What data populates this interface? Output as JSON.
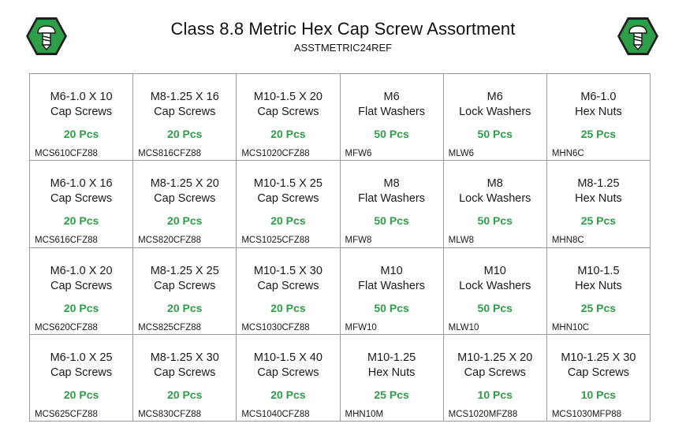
{
  "header": {
    "title": "Class 8.8 Metric Hex Cap Screw Assortment",
    "subtitle": "ASSTMETRIC24REF",
    "logo_icon": "green-hex-screw-icon",
    "logo_color": "#2e9e48"
  },
  "qty_color": "#2e9e48",
  "rows": [
    [
      {
        "size": "M6-1.0 X 10",
        "kind": "Cap Screws",
        "qty": "20 Pcs",
        "sku": "MCS610CFZ88"
      },
      {
        "size": "M8-1.25 X 16",
        "kind": "Cap Screws",
        "qty": "20 Pcs",
        "sku": "MCS816CFZ88"
      },
      {
        "size": "M10-1.5 X 20",
        "kind": "Cap Screws",
        "qty": "20 Pcs",
        "sku": "MCS1020CFZ88"
      },
      {
        "size": "M6",
        "kind": "Flat Washers",
        "qty": "50 Pcs",
        "sku": "MFW6"
      },
      {
        "size": "M6",
        "kind": "Lock Washers",
        "qty": "50 Pcs",
        "sku": "MLW6"
      },
      {
        "size": "M6-1.0",
        "kind": "Hex Nuts",
        "qty": "25 Pcs",
        "sku": "MHN6C"
      }
    ],
    [
      {
        "size": "M6-1.0 X 16",
        "kind": "Cap Screws",
        "qty": "20 Pcs",
        "sku": "MCS616CFZ88"
      },
      {
        "size": "M8-1.25 X 20",
        "kind": "Cap Screws",
        "qty": "20 Pcs",
        "sku": "MCS820CFZ88"
      },
      {
        "size": "M10-1.5 X 25",
        "kind": "Cap Screws",
        "qty": "20 Pcs",
        "sku": "MCS1025CFZ88"
      },
      {
        "size": "M8",
        "kind": "Flat Washers",
        "qty": "50 Pcs",
        "sku": "MFW8"
      },
      {
        "size": "M8",
        "kind": "Lock Washers",
        "qty": "50 Pcs",
        "sku": "MLW8"
      },
      {
        "size": "M8-1.25",
        "kind": "Hex Nuts",
        "qty": "25 Pcs",
        "sku": "MHN8C"
      }
    ],
    [
      {
        "size": "M6-1.0 X 20",
        "kind": "Cap Screws",
        "qty": "20 Pcs",
        "sku": "MCS620CFZ88"
      },
      {
        "size": "M8-1.25 X 25",
        "kind": "Cap Screws",
        "qty": "20 Pcs",
        "sku": "MCS825CFZ88"
      },
      {
        "size": "M10-1.5 X 30",
        "kind": "Cap Screws",
        "qty": "20 Pcs",
        "sku": "MCS1030CFZ88"
      },
      {
        "size": "M10",
        "kind": "Flat Washers",
        "qty": "50 Pcs",
        "sku": "MFW10"
      },
      {
        "size": "M10",
        "kind": "Lock Washers",
        "qty": "50 Pcs",
        "sku": "MLW10"
      },
      {
        "size": "M10-1.5",
        "kind": "Hex Nuts",
        "qty": "25 Pcs",
        "sku": "MHN10C"
      }
    ],
    [
      {
        "size": "M6-1.0 X 25",
        "kind": "Cap Screws",
        "qty": "20 Pcs",
        "sku": "MCS625CFZ88"
      },
      {
        "size": "M8-1.25 X 30",
        "kind": "Cap Screws",
        "qty": "20 Pcs",
        "sku": "MCS830CFZ88"
      },
      {
        "size": "M10-1.5 X 40",
        "kind": "Cap Screws",
        "qty": "20 Pcs",
        "sku": "MCS1040CFZ88"
      },
      {
        "size": "M10-1.25",
        "kind": "Hex Nuts",
        "qty": "25 Pcs",
        "sku": "MHN10M"
      },
      {
        "size": "M10-1.25 X 20",
        "kind": "Cap Screws",
        "qty": "10 Pcs",
        "sku": "MCS1020MFZ88"
      },
      {
        "size": "M10-1.25 X 30",
        "kind": "Cap Screws",
        "qty": "10 Pcs",
        "sku": "MCS1030MFP88"
      }
    ]
  ]
}
